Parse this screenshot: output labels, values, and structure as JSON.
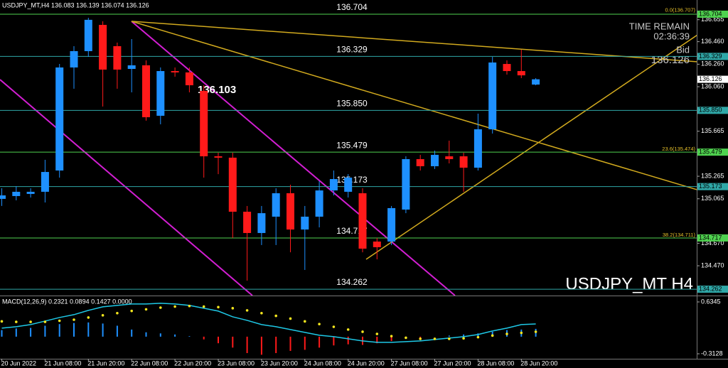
{
  "header": {
    "symbol_info": "USDJPY_MT,H4  136.083 136.139 136.074 136.126"
  },
  "chart_data": [
    {
      "type": "candlestick",
      "categories": [
        "20 Jun 2022",
        null,
        null,
        "21 Jun 08:00",
        null,
        null,
        "21 Jun 20:00",
        null,
        null,
        "22 Jun 08:00",
        null,
        null,
        "22 Jun 20:00",
        null,
        null,
        "23 Jun 08:00",
        null,
        null,
        "23 Jun 20:00",
        null,
        null,
        "24 Jun 08:00",
        null,
        null,
        "24 Jun 20:00",
        null,
        null,
        "27 Jun 08:00",
        null,
        null,
        "27 Jun 20:00",
        null,
        null,
        "28 Jun 08:00",
        null,
        null,
        "28 Jun 20:00",
        null
      ],
      "open": [
        135.064,
        135.089,
        135.108,
        135.127,
        135.316,
        136.231,
        136.376,
        136.609,
        136.42,
        136.218,
        136.25,
        135.802,
        136.199,
        136.187,
        136.023,
        135.442,
        135.43,
        134.95,
        134.761,
        134.906,
        135.114,
        134.792,
        134.906,
        135.139,
        135.127,
        135.114,
        134.685,
        134.685,
        134.969,
        135.417,
        135.354,
        135.442,
        135.442,
        135.341,
        135.682,
        136.262,
        136.199,
        136.079
      ],
      "high": [
        135.158,
        135.177,
        135.158,
        135.411,
        136.262,
        136.42,
        136.672,
        136.641,
        136.452,
        136.483,
        136.294,
        136.231,
        136.231,
        136.231,
        136.073,
        135.474,
        135.474,
        135.001,
        135.001,
        135.158,
        135.19,
        135.001,
        135.221,
        135.316,
        135.284,
        135.158,
        134.717,
        135.001,
        135.442,
        135.455,
        135.493,
        135.581,
        135.474,
        135.821,
        136.325,
        136.294,
        136.389,
        136.136
      ],
      "low": [
        135.001,
        135.051,
        135.076,
        135.032,
        135.253,
        136.042,
        136.325,
        135.884,
        136.042,
        136.01,
        135.758,
        135.726,
        136.149,
        136.01,
        135.253,
        135.284,
        134.717,
        134.338,
        134.654,
        134.654,
        134.59,
        134.433,
        134.811,
        135.095,
        135.076,
        134.59,
        134.527,
        134.654,
        134.937,
        135.316,
        135.329,
        135.379,
        135.127,
        135.316,
        135.644,
        136.168,
        136.136,
        136.073
      ],
      "close": [
        135.095,
        135.127,
        135.127,
        135.303,
        136.231,
        136.376,
        136.654,
        136.212,
        136.212,
        136.25,
        135.789,
        136.199,
        136.187,
        136.073,
        135.442,
        135.43,
        134.95,
        134.761,
        134.937,
        135.114,
        134.792,
        134.906,
        135.139,
        135.24,
        135.253,
        134.622,
        134.635,
        134.982,
        135.417,
        135.354,
        135.455,
        135.417,
        135.341,
        135.682,
        136.275,
        136.199,
        136.161,
        136.126
      ],
      "up_color": "#1e90ff",
      "down_color": "#ff1a1a",
      "ylim": [
        134.212,
        136.83
      ],
      "yticks": [
        136.655,
        {
          "value": 136.46,
          "label": "136.460"
        },
        {
          "value": 136.26,
          "label": "136.260"
        },
        {
          "value": 136.06,
          "label": "136.060"
        },
        135.665,
        135.265,
        135.065,
        {
          "value": 134.67,
          "label": "134.670"
        },
        {
          "value": 134.47,
          "label": "134.470"
        }
      ],
      "levels": [
        {
          "value": 136.704,
          "label": "136.704",
          "color": "#4fd24f"
        },
        {
          "value": 136.329,
          "label": "136.329",
          "color": "#2fa7a7"
        },
        {
          "value": 135.85,
          "label": "135.850",
          "color": "#2fa7a7"
        },
        {
          "value": 135.479,
          "label": "135.479",
          "color": "#4fd24f"
        },
        {
          "value": 135.173,
          "label": "135.173",
          "color": "#2fa7a7"
        },
        {
          "value": 134.717,
          "label": "134.717",
          "color": "#4fd24f"
        },
        {
          "value": 134.262,
          "label": "134.262",
          "color": "#2fa7a7"
        }
      ],
      "fib_labels": [
        {
          "value": 136.707,
          "label": "0.0(136.707)"
        },
        {
          "value": 135.474,
          "label": "23.6(135.474)"
        },
        {
          "value": 134.711,
          "label": "38.2(134.711)"
        }
      ],
      "fib_color": "#e6c02a",
      "annotation": {
        "value": 136.103,
        "label": "136.103"
      },
      "time_remain": "TIME REMAIN",
      "countdown": "02:36:39",
      "bid_label": "Bid",
      "bid_price": 136.126,
      "watermark": "USDJPY_MT H4"
    },
    {
      "type": "macd",
      "title": "MACD(12,26,9) 0.2321 0.0894 0.1427 0.0000",
      "histogram": [
        0.12,
        0.15,
        0.16,
        0.2,
        0.23,
        0.25,
        0.26,
        0.24,
        0.2,
        0.13,
        0.08,
        0.06,
        0.04,
        0.01,
        -0.05,
        -0.12,
        -0.2,
        -0.3,
        -0.33,
        -0.3,
        -0.26,
        -0.24,
        -0.2,
        -0.16,
        -0.14,
        -0.15,
        -0.12,
        -0.08,
        -0.04,
        -0.02,
        0.0,
        0.02,
        0.04,
        0.06,
        0.09,
        0.12,
        0.13,
        0.1427
      ],
      "main": [
        0.156,
        0.182,
        0.221,
        0.285,
        0.35,
        0.402,
        0.48,
        0.545,
        0.571,
        0.597,
        0.597,
        0.61,
        0.597,
        0.571,
        0.519,
        0.467,
        0.363,
        0.298,
        0.221,
        0.182,
        0.13,
        0.078,
        0.026,
        0.0,
        -0.039,
        -0.078,
        -0.104,
        -0.104,
        -0.091,
        -0.078,
        -0.052,
        -0.026,
        0.0,
        0.039,
        0.104,
        0.156,
        0.221,
        0.2321
      ],
      "signal": [
        0.28,
        0.27,
        0.27,
        0.27,
        0.29,
        0.31,
        0.35,
        0.39,
        0.43,
        0.47,
        0.5,
        0.53,
        0.55,
        0.56,
        0.55,
        0.54,
        0.52,
        0.48,
        0.43,
        0.38,
        0.33,
        0.28,
        0.23,
        0.18,
        0.13,
        0.09,
        0.05,
        0.01,
        -0.02,
        -0.04,
        -0.04,
        -0.04,
        -0.03,
        -0.01,
        0.02,
        0.05,
        0.07,
        0.0894
      ],
      "pos_color": "#1e90ff",
      "neg_color": "#ff1a1a",
      "main_color": "#1ec8e6",
      "signal_color": "#f5e61e",
      "ylim": [
        -0.4036,
        0.7253
      ],
      "yticks": [
        0.6345,
        -0.3128
      ]
    }
  ]
}
